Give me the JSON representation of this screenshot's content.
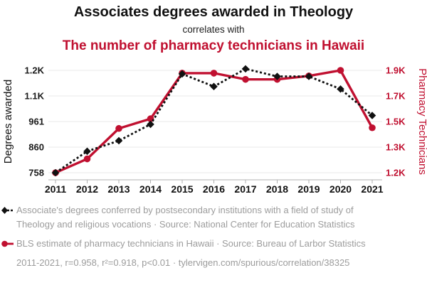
{
  "header": {
    "title": "Associates degrees awarded in Theology",
    "connector": "correlates with",
    "subtitle": "The number of pharmacy technicians in Hawaii"
  },
  "colors": {
    "accent_red": "#c01030",
    "series_black": "#111111",
    "legend_gray": "#9c9c9c",
    "gridline": "#e8e8e8",
    "axis": "#b0b0b0"
  },
  "chart_data": {
    "type": "line",
    "title": "Associates degrees awarded in Theology correlates with The number of pharmacy technicians in Hawaii",
    "x": [
      2011,
      2012,
      2013,
      2014,
      2015,
      2016,
      2017,
      2018,
      2019,
      2020,
      2021
    ],
    "series": [
      {
        "name": "Associates degrees awarded in Theology",
        "axis": "left",
        "marker": "diamond",
        "line_style": "dashed",
        "color": "#111111",
        "values": [
          758,
          843,
          885,
          950,
          1150,
          1100,
          1170,
          1140,
          1140,
          1090,
          985
        ]
      },
      {
        "name": "Pharmacy technicians in Hawaii",
        "axis": "right",
        "marker": "circle",
        "line_style": "solid",
        "color": "#c01030",
        "values": [
          1160,
          1260,
          1480,
          1550,
          1880,
          1880,
          1835,
          1835,
          1860,
          1900,
          1485
        ]
      }
    ],
    "left_axis": {
      "label": "Degrees awarded",
      "range": [
        758,
        1164
      ],
      "tick_labels": [
        "1.2K",
        "1.1K",
        "961",
        "860",
        "758"
      ],
      "tick_values": [
        1164,
        1062.5,
        961,
        859.5,
        758
      ]
    },
    "right_axis": {
      "label": "Pharmacy Technicians",
      "range": [
        1160,
        1900
      ],
      "tick_labels": [
        "1.9K",
        "1.7K",
        "1.5K",
        "1.3K",
        "1.2K"
      ],
      "tick_values": [
        1900,
        1715,
        1530,
        1345,
        1160
      ]
    },
    "x_tick_labels": [
      "2011",
      "2012",
      "2013",
      "2014",
      "2015",
      "2016",
      "2017",
      "2018",
      "2019",
      "2020",
      "2021"
    ],
    "grid": true,
    "legend_position": "bottom"
  },
  "legend": {
    "series1": "Associate's degrees conferred by postsecondary institutions with a field of study of Theology and religious vocations · Source: National Center for Education Statistics",
    "series2": "BLS estimate of pharmacy technicians in Hawaii · Source: Bureau of Larbor Statistics",
    "stats": "2011-2021, r=0.958, r²=0.918, p<0.01 · tylervigen.com/spurious/correlation/38325"
  }
}
